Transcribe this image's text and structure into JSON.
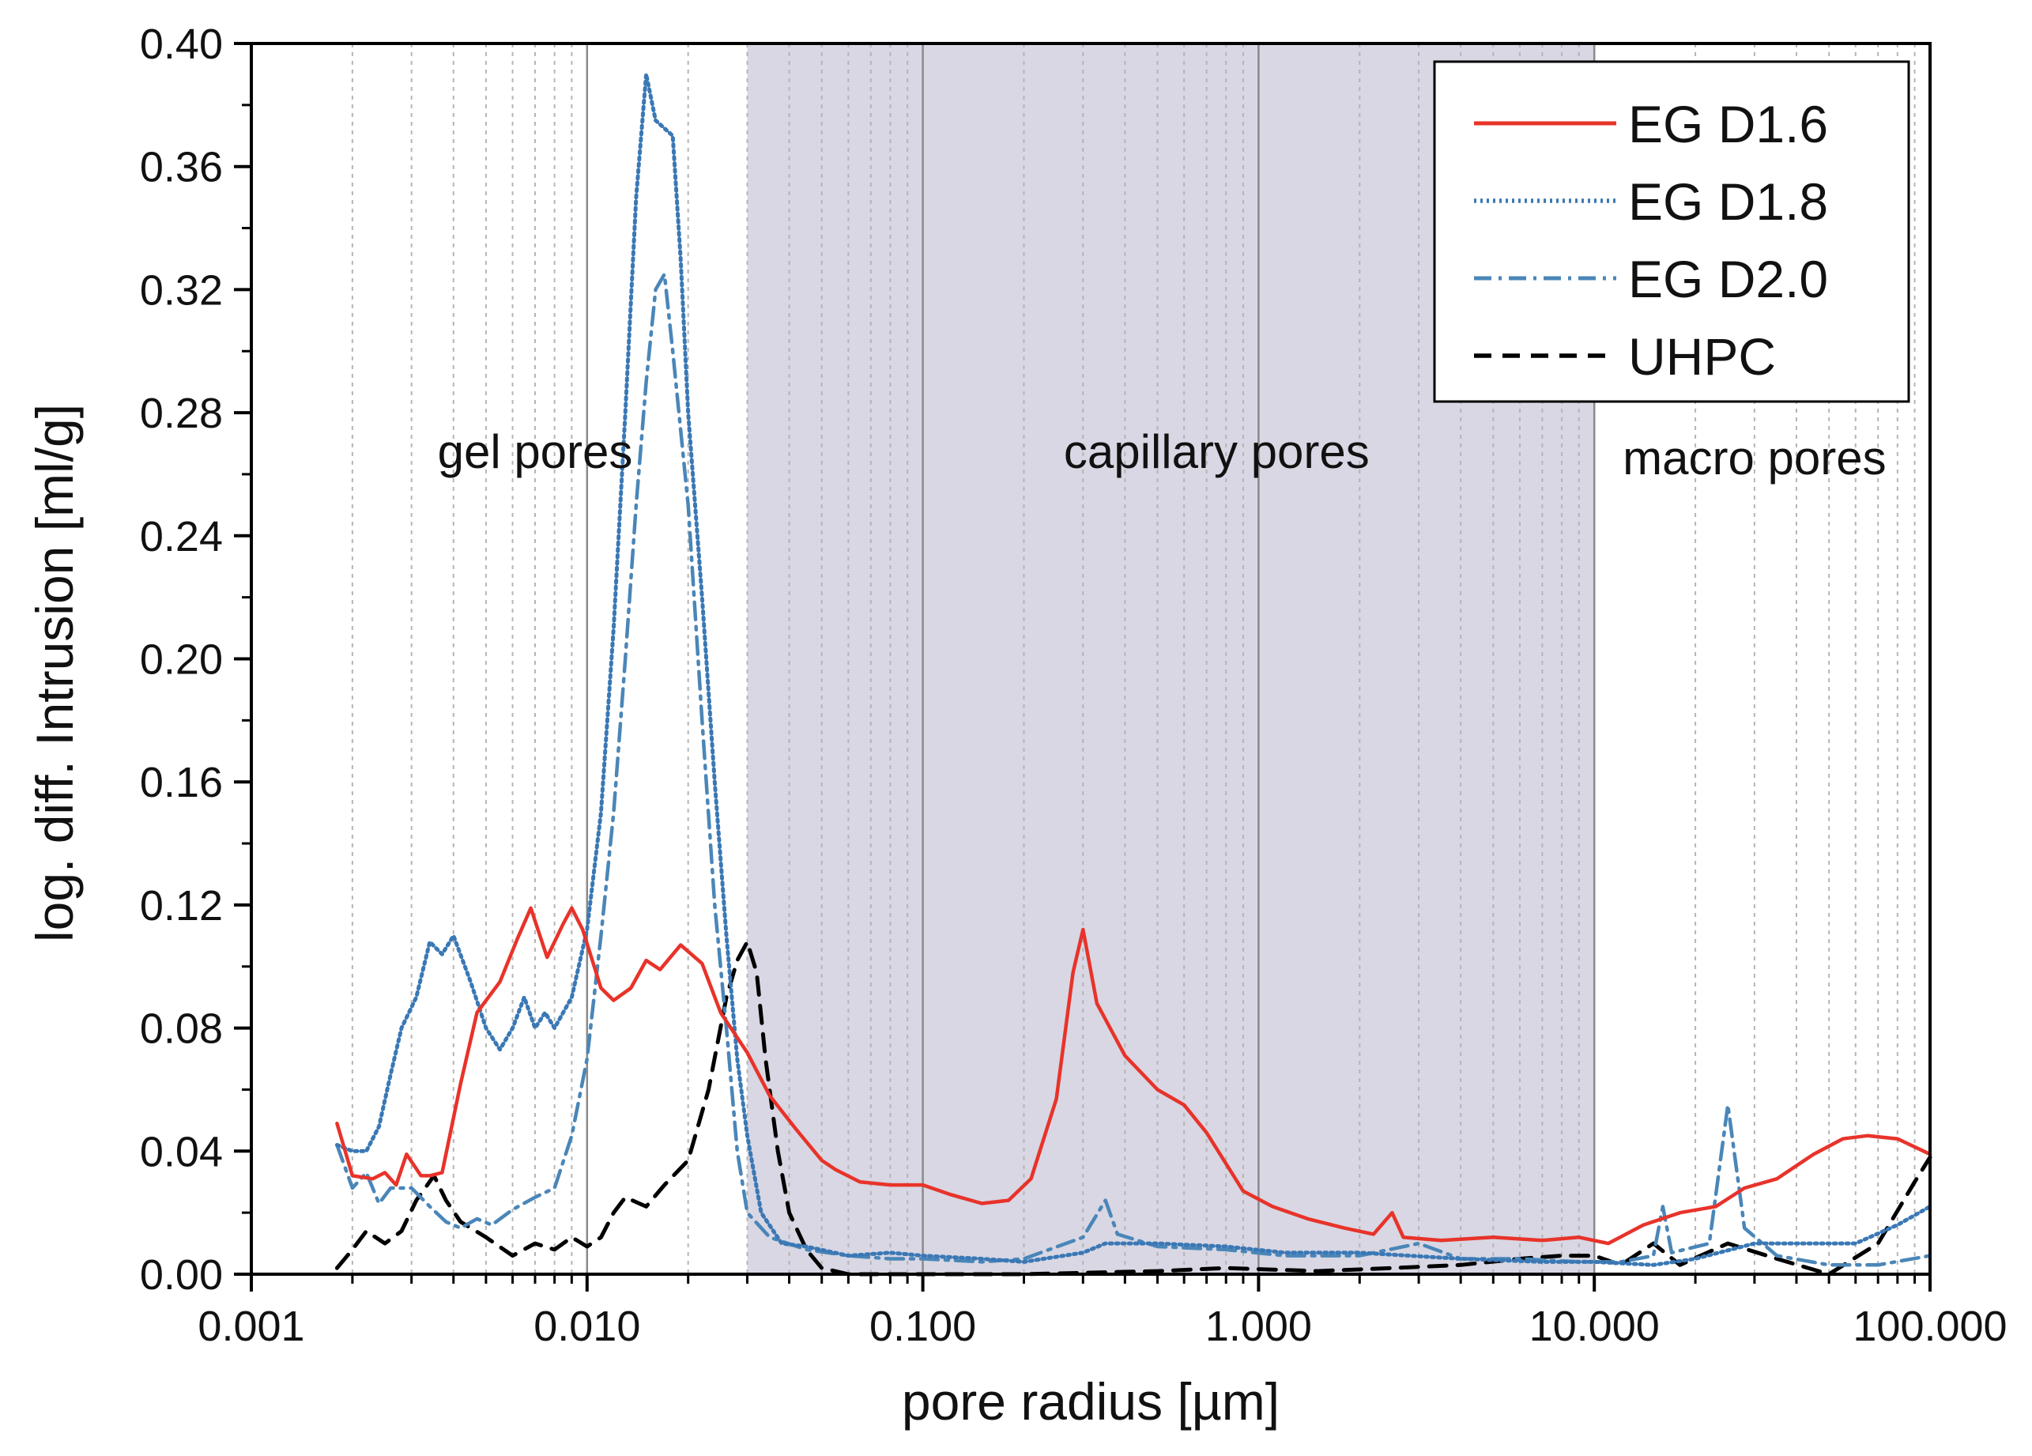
{
  "chart_data": {
    "type": "line",
    "title": "",
    "xlabel": "pore radius [µm]",
    "ylabel": "log. diff. Intrusion [ml/g]",
    "xscale": "log",
    "xlim": [
      0.001,
      100.0
    ],
    "ylim": [
      0.0,
      0.4
    ],
    "x_ticks": [
      {
        "value": 0.001,
        "label": "0.001"
      },
      {
        "value": 0.01,
        "label": "0.010"
      },
      {
        "value": 0.1,
        "label": "0.100"
      },
      {
        "value": 1.0,
        "label": "1.000"
      },
      {
        "value": 10.0,
        "label": "10.000"
      },
      {
        "value": 100.0,
        "label": "100.000"
      }
    ],
    "y_ticks": [
      {
        "value": 0.0,
        "label": "0.00"
      },
      {
        "value": 0.04,
        "label": "0.04"
      },
      {
        "value": 0.08,
        "label": "0.08"
      },
      {
        "value": 0.12,
        "label": "0.12"
      },
      {
        "value": 0.16,
        "label": "0.16"
      },
      {
        "value": 0.2,
        "label": "0.20"
      },
      {
        "value": 0.24,
        "label": "0.24"
      },
      {
        "value": 0.28,
        "label": "0.28"
      },
      {
        "value": 0.32,
        "label": "0.32"
      },
      {
        "value": 0.36,
        "label": "0.36"
      },
      {
        "value": 0.4,
        "label": "0.40"
      }
    ],
    "grid": "vertical minor lines on log x axis",
    "legend_position": "top-right",
    "regions": [
      {
        "label": "gel pores",
        "from": 0.001,
        "to": 0.03,
        "shaded": false,
        "label_x": 0.007,
        "label_y": 0.262
      },
      {
        "label": "capillary pores",
        "from": 0.03,
        "to": 10.0,
        "shaded": true,
        "color": "#d8d7e3",
        "label_x": 0.75,
        "label_y": 0.262
      },
      {
        "label": "macro pores",
        "from": 10.0,
        "to": 100.0,
        "shaded": false,
        "label_x": 30.0,
        "label_y": 0.26
      }
    ],
    "series": [
      {
        "name": "EG D1.6",
        "color": "#e8332a",
        "style": "solid",
        "points": [
          [
            0.0018,
            0.049
          ],
          [
            0.002,
            0.032
          ],
          [
            0.0023,
            0.031
          ],
          [
            0.0025,
            0.033
          ],
          [
            0.0027,
            0.029
          ],
          [
            0.0029,
            0.039
          ],
          [
            0.0032,
            0.032
          ],
          [
            0.0034,
            0.032
          ],
          [
            0.0037,
            0.033
          ],
          [
            0.0042,
            0.062
          ],
          [
            0.0047,
            0.085
          ],
          [
            0.0055,
            0.095
          ],
          [
            0.0062,
            0.109
          ],
          [
            0.0068,
            0.119
          ],
          [
            0.0076,
            0.103
          ],
          [
            0.0085,
            0.114
          ],
          [
            0.009,
            0.119
          ],
          [
            0.0097,
            0.112
          ],
          [
            0.011,
            0.093
          ],
          [
            0.012,
            0.089
          ],
          [
            0.0135,
            0.093
          ],
          [
            0.015,
            0.102
          ],
          [
            0.0165,
            0.099
          ],
          [
            0.019,
            0.107
          ],
          [
            0.022,
            0.101
          ],
          [
            0.025,
            0.085
          ],
          [
            0.03,
            0.072
          ],
          [
            0.035,
            0.058
          ],
          [
            0.042,
            0.047
          ],
          [
            0.05,
            0.037
          ],
          [
            0.055,
            0.034
          ],
          [
            0.065,
            0.03
          ],
          [
            0.08,
            0.029
          ],
          [
            0.1,
            0.029
          ],
          [
            0.12,
            0.026
          ],
          [
            0.15,
            0.023
          ],
          [
            0.18,
            0.024
          ],
          [
            0.21,
            0.031
          ],
          [
            0.25,
            0.057
          ],
          [
            0.28,
            0.098
          ],
          [
            0.3,
            0.112
          ],
          [
            0.33,
            0.088
          ],
          [
            0.4,
            0.071
          ],
          [
            0.5,
            0.06
          ],
          [
            0.6,
            0.055
          ],
          [
            0.7,
            0.046
          ],
          [
            0.9,
            0.027
          ],
          [
            1.1,
            0.022
          ],
          [
            1.4,
            0.018
          ],
          [
            1.8,
            0.015
          ],
          [
            2.2,
            0.013
          ],
          [
            2.5,
            0.02
          ],
          [
            2.7,
            0.012
          ],
          [
            3.5,
            0.011
          ],
          [
            5.0,
            0.012
          ],
          [
            7.0,
            0.011
          ],
          [
            9.0,
            0.012
          ],
          [
            11.0,
            0.01
          ],
          [
            14.0,
            0.016
          ],
          [
            18.0,
            0.02
          ],
          [
            23.0,
            0.022
          ],
          [
            28.0,
            0.028
          ],
          [
            35.0,
            0.031
          ],
          [
            45.0,
            0.039
          ],
          [
            55.0,
            0.044
          ],
          [
            65.0,
            0.045
          ],
          [
            80.0,
            0.044
          ],
          [
            100.0,
            0.039
          ]
        ]
      },
      {
        "name": "EG D1.8",
        "color": "#3a78b5",
        "style": "dotted",
        "points": [
          [
            0.0018,
            0.042
          ],
          [
            0.002,
            0.04
          ],
          [
            0.0022,
            0.04
          ],
          [
            0.0024,
            0.048
          ],
          [
            0.0026,
            0.065
          ],
          [
            0.0028,
            0.08
          ],
          [
            0.0031,
            0.09
          ],
          [
            0.0034,
            0.108
          ],
          [
            0.0037,
            0.104
          ],
          [
            0.004,
            0.11
          ],
          [
            0.0045,
            0.095
          ],
          [
            0.005,
            0.08
          ],
          [
            0.0055,
            0.073
          ],
          [
            0.006,
            0.08
          ],
          [
            0.0065,
            0.09
          ],
          [
            0.007,
            0.08
          ],
          [
            0.0075,
            0.085
          ],
          [
            0.008,
            0.08
          ],
          [
            0.009,
            0.09
          ],
          [
            0.01,
            0.112
          ],
          [
            0.011,
            0.15
          ],
          [
            0.012,
            0.21
          ],
          [
            0.013,
            0.28
          ],
          [
            0.014,
            0.35
          ],
          [
            0.015,
            0.39
          ],
          [
            0.016,
            0.375
          ],
          [
            0.018,
            0.37
          ],
          [
            0.019,
            0.33
          ],
          [
            0.02,
            0.28
          ],
          [
            0.022,
            0.22
          ],
          [
            0.024,
            0.16
          ],
          [
            0.026,
            0.11
          ],
          [
            0.028,
            0.07
          ],
          [
            0.03,
            0.045
          ],
          [
            0.033,
            0.02
          ],
          [
            0.038,
            0.01
          ],
          [
            0.045,
            0.009
          ],
          [
            0.06,
            0.006
          ],
          [
            0.08,
            0.007
          ],
          [
            0.1,
            0.006
          ],
          [
            0.15,
            0.005
          ],
          [
            0.2,
            0.004
          ],
          [
            0.3,
            0.007
          ],
          [
            0.35,
            0.01
          ],
          [
            0.5,
            0.01
          ],
          [
            0.8,
            0.009
          ],
          [
            1.2,
            0.007
          ],
          [
            2.0,
            0.007
          ],
          [
            4.0,
            0.005
          ],
          [
            7.0,
            0.004
          ],
          [
            10.0,
            0.004
          ],
          [
            15.0,
            0.003
          ],
          [
            20.0,
            0.005
          ],
          [
            30.0,
            0.01
          ],
          [
            45.0,
            0.01
          ],
          [
            60.0,
            0.01
          ],
          [
            80.0,
            0.016
          ],
          [
            100.0,
            0.022
          ]
        ]
      },
      {
        "name": "EG D2.0",
        "color": "#4a86b8",
        "style": "dashdot",
        "points": [
          [
            0.0018,
            0.042
          ],
          [
            0.002,
            0.028
          ],
          [
            0.0022,
            0.033
          ],
          [
            0.0024,
            0.023
          ],
          [
            0.0026,
            0.028
          ],
          [
            0.003,
            0.028
          ],
          [
            0.0034,
            0.022
          ],
          [
            0.0038,
            0.017
          ],
          [
            0.0042,
            0.015
          ],
          [
            0.0047,
            0.018
          ],
          [
            0.0052,
            0.016
          ],
          [
            0.006,
            0.021
          ],
          [
            0.007,
            0.025
          ],
          [
            0.008,
            0.028
          ],
          [
            0.009,
            0.045
          ],
          [
            0.01,
            0.07
          ],
          [
            0.011,
            0.11
          ],
          [
            0.012,
            0.15
          ],
          [
            0.013,
            0.2
          ],
          [
            0.014,
            0.25
          ],
          [
            0.015,
            0.29
          ],
          [
            0.016,
            0.32
          ],
          [
            0.017,
            0.325
          ],
          [
            0.018,
            0.3
          ],
          [
            0.02,
            0.25
          ],
          [
            0.022,
            0.18
          ],
          [
            0.024,
            0.12
          ],
          [
            0.026,
            0.08
          ],
          [
            0.028,
            0.04
          ],
          [
            0.03,
            0.02
          ],
          [
            0.035,
            0.012
          ],
          [
            0.045,
            0.008
          ],
          [
            0.06,
            0.006
          ],
          [
            0.08,
            0.005
          ],
          [
            0.1,
            0.005
          ],
          [
            0.15,
            0.004
          ],
          [
            0.2,
            0.005
          ],
          [
            0.3,
            0.012
          ],
          [
            0.35,
            0.024
          ],
          [
            0.38,
            0.013
          ],
          [
            0.5,
            0.009
          ],
          [
            0.8,
            0.008
          ],
          [
            1.2,
            0.006
          ],
          [
            2.0,
            0.006
          ],
          [
            3.0,
            0.01
          ],
          [
            4.0,
            0.005
          ],
          [
            6.0,
            0.005
          ],
          [
            9.0,
            0.004
          ],
          [
            12.0,
            0.004
          ],
          [
            15.0,
            0.006
          ],
          [
            16.0,
            0.022
          ],
          [
            17.0,
            0.007
          ],
          [
            22.0,
            0.01
          ],
          [
            25.0,
            0.055
          ],
          [
            28.0,
            0.015
          ],
          [
            35.0,
            0.006
          ],
          [
            50.0,
            0.003
          ],
          [
            70.0,
            0.003
          ],
          [
            100.0,
            0.006
          ]
        ]
      },
      {
        "name": "UHPC",
        "color": "#000000",
        "style": "dashed",
        "points": [
          [
            0.0018,
            0.002
          ],
          [
            0.002,
            0.008
          ],
          [
            0.0022,
            0.014
          ],
          [
            0.0025,
            0.01
          ],
          [
            0.0028,
            0.014
          ],
          [
            0.0031,
            0.024
          ],
          [
            0.0035,
            0.032
          ],
          [
            0.0038,
            0.024
          ],
          [
            0.0042,
            0.017
          ],
          [
            0.005,
            0.012
          ],
          [
            0.006,
            0.006
          ],
          [
            0.007,
            0.01
          ],
          [
            0.008,
            0.008
          ],
          [
            0.009,
            0.012
          ],
          [
            0.01,
            0.009
          ],
          [
            0.011,
            0.012
          ],
          [
            0.012,
            0.02
          ],
          [
            0.013,
            0.025
          ],
          [
            0.015,
            0.022
          ],
          [
            0.017,
            0.029
          ],
          [
            0.02,
            0.037
          ],
          [
            0.023,
            0.06
          ],
          [
            0.026,
            0.09
          ],
          [
            0.028,
            0.102
          ],
          [
            0.03,
            0.108
          ],
          [
            0.032,
            0.098
          ],
          [
            0.034,
            0.07
          ],
          [
            0.037,
            0.04
          ],
          [
            0.04,
            0.02
          ],
          [
            0.045,
            0.008
          ],
          [
            0.05,
            0.002
          ],
          [
            0.06,
            0.0
          ],
          [
            0.2,
            0.0
          ],
          [
            0.5,
            0.001
          ],
          [
            0.8,
            0.002
          ],
          [
            1.5,
            0.001
          ],
          [
            2.5,
            0.002
          ],
          [
            4.0,
            0.003
          ],
          [
            6.0,
            0.005
          ],
          [
            8.0,
            0.006
          ],
          [
            10.0,
            0.006
          ],
          [
            12.0,
            0.003
          ],
          [
            15.0,
            0.01
          ],
          [
            18.0,
            0.003
          ],
          [
            25.0,
            0.01
          ],
          [
            35.0,
            0.005
          ],
          [
            50.0,
            0.0
          ],
          [
            70.0,
            0.01
          ],
          [
            90.0,
            0.03
          ],
          [
            100.0,
            0.038
          ]
        ]
      }
    ]
  }
}
